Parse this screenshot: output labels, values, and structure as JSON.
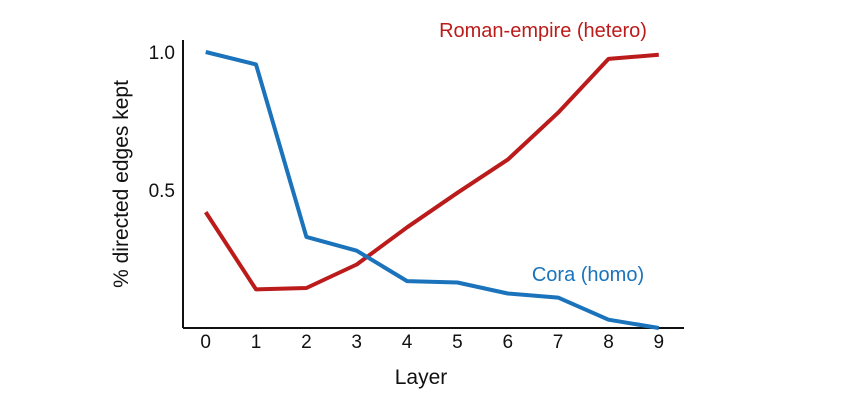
{
  "chart_data": {
    "type": "line",
    "title": "",
    "xlabel": "Layer",
    "ylabel": "% directed edges kept",
    "x": [
      0,
      1,
      2,
      3,
      4,
      5,
      6,
      7,
      8,
      9
    ],
    "xlim": [
      -0.45,
      9.5
    ],
    "ylim": [
      0,
      1.0
    ],
    "yticks": [
      1.0,
      0.5
    ],
    "ytick_labels": [
      "1.0",
      "0.5"
    ],
    "xtick_labels": [
      "0",
      "1",
      "2",
      "3",
      "4",
      "5",
      "6",
      "7",
      "8",
      "9"
    ],
    "grid": false,
    "legend": "none",
    "series": [
      {
        "name": "Roman-empire (hetero)",
        "color": "#bb1b1b",
        "values": [
          0.42,
          0.14,
          0.145,
          0.23,
          0.365,
          0.49,
          0.61,
          0.78,
          0.975,
          0.99
        ]
      },
      {
        "name": "Cora (homo)",
        "color": "#1a73bb",
        "values": [
          1.0,
          0.955,
          0.33,
          0.28,
          0.17,
          0.165,
          0.125,
          0.11,
          0.03,
          0.0
        ]
      }
    ]
  }
}
